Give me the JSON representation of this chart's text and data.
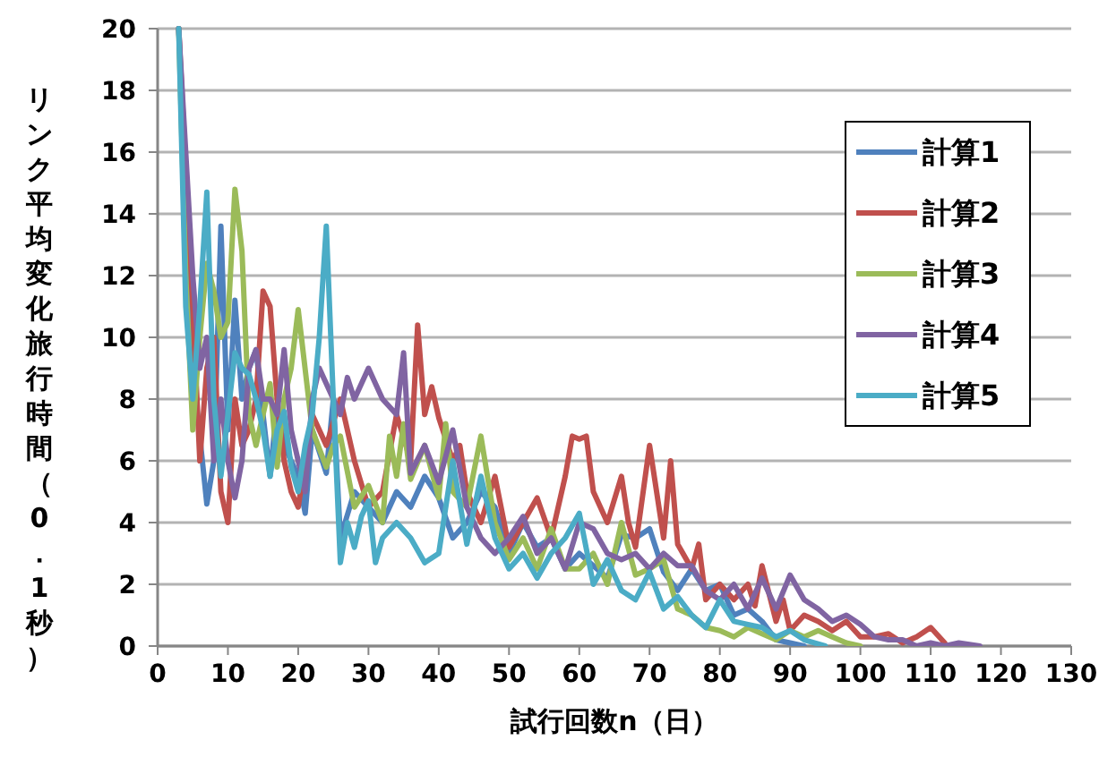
{
  "chart_data": {
    "type": "line",
    "xlabel": "試行回数n（日）",
    "ylabel": "リンク平均変化旅行時間（0．1秒）",
    "xlim": [
      0,
      130
    ],
    "xticks": [
      0,
      10,
      20,
      30,
      40,
      50,
      60,
      70,
      80,
      90,
      100,
      110,
      120,
      130
    ],
    "ylim": [
      0,
      20
    ],
    "yticks": [
      0,
      2,
      4,
      6,
      8,
      10,
      12,
      14,
      16,
      18,
      20
    ],
    "grid": "y",
    "legend": "top right",
    "marker": "none",
    "line_style": "solid",
    "series": [
      {
        "name": "計算1",
        "color": "#4f81bd",
        "x": [
          3,
          5,
          7,
          8,
          9,
          10,
          11,
          12,
          13,
          14,
          15,
          16,
          17,
          18,
          20,
          21,
          22,
          24,
          25,
          26,
          28,
          30,
          32,
          34,
          36,
          38,
          40,
          42,
          44,
          46,
          48,
          50,
          52,
          54,
          56,
          58,
          60,
          62,
          64,
          66,
          68,
          70,
          72,
          74,
          76,
          78,
          80,
          82,
          84,
          86,
          88,
          90,
          92
        ],
        "values": [
          20,
          9,
          4.6,
          6,
          13.6,
          7,
          11.2,
          8,
          9,
          9.6,
          7.5,
          5.5,
          7.8,
          6.5,
          5.5,
          4.3,
          7,
          5.6,
          8,
          3.5,
          5,
          4.5,
          4,
          5,
          4.5,
          5.5,
          4.8,
          3.5,
          4,
          5,
          4.5,
          3,
          4,
          3.2,
          3.5,
          2.5,
          3,
          2.6,
          2.2,
          3.6,
          3.5,
          3.8,
          2.4,
          1.8,
          2.5,
          1.8,
          2,
          1,
          1.2,
          0.8,
          0.2,
          0.1,
          0
        ]
      },
      {
        "name": "計算2",
        "color": "#c0504d",
        "x": [
          3,
          5,
          6,
          7,
          8,
          9,
          10,
          11,
          12,
          13,
          14,
          15,
          16,
          17,
          18,
          19,
          20,
          22,
          24,
          26,
          28,
          30,
          32,
          34,
          36,
          37,
          38,
          39,
          40,
          42,
          43,
          44,
          46,
          48,
          50,
          52,
          54,
          56,
          58,
          59,
          60,
          61,
          62,
          64,
          66,
          67,
          68,
          70,
          72,
          73,
          74,
          76,
          77,
          78,
          80,
          82,
          84,
          85,
          86,
          88,
          89,
          90,
          92,
          94,
          96,
          98,
          100,
          102,
          104,
          106,
          108,
          110,
          112
        ],
        "values": [
          20,
          11,
          6,
          9,
          10,
          5,
          4,
          8,
          6.5,
          7,
          8,
          11.5,
          11,
          8,
          6,
          5,
          4.5,
          7.5,
          6.5,
          8,
          6,
          4.5,
          5,
          7.5,
          6,
          10.4,
          7.5,
          8.4,
          7.4,
          6,
          6.5,
          5,
          4,
          5.5,
          3.2,
          4,
          4.8,
          3.5,
          5.5,
          6.8,
          6.7,
          6.8,
          5,
          4,
          5.5,
          4,
          3.2,
          6.5,
          3.5,
          6,
          3.3,
          2.5,
          3.3,
          1.5,
          2,
          1.5,
          2,
          1.3,
          2.6,
          0.8,
          1.5,
          0.5,
          1,
          0.8,
          0.5,
          0.8,
          0.3,
          0.3,
          0.4,
          0.1,
          0.3,
          0.6,
          0.1
        ]
      },
      {
        "name": "計算3",
        "color": "#9bbb59",
        "x": [
          3,
          4,
          5,
          6,
          7,
          8,
          9,
          10,
          11,
          12,
          13,
          14,
          16,
          17,
          18,
          19,
          20,
          22,
          24,
          25,
          26,
          28,
          30,
          32,
          33,
          34,
          35,
          36,
          38,
          40,
          41,
          42,
          44,
          46,
          48,
          50,
          52,
          54,
          56,
          58,
          60,
          62,
          64,
          66,
          68,
          70,
          72,
          74,
          76,
          78,
          80,
          82,
          84,
          86,
          88,
          90,
          92,
          94,
          96,
          98,
          100
        ],
        "values": [
          20,
          12,
          7,
          10,
          12.4,
          11.5,
          10,
          10.5,
          14.8,
          12.8,
          7.5,
          6.5,
          8.5,
          5.8,
          8,
          9,
          10.9,
          7,
          5.8,
          6.5,
          6.8,
          4.5,
          5.2,
          4,
          6.8,
          5.5,
          7.2,
          5.4,
          6.5,
          4.8,
          7.2,
          5,
          4.5,
          6.8,
          4,
          2.8,
          3.5,
          2.5,
          3.8,
          2.5,
          2.5,
          3,
          2,
          4,
          2.3,
          2.5,
          2.8,
          1.2,
          1,
          0.6,
          0.5,
          0.3,
          0.6,
          0.4,
          0.2,
          0.5,
          0.3,
          0.5,
          0.3,
          0.1,
          0
        ]
      },
      {
        "name": "計算4",
        "color": "#8064a2",
        "x": [
          3,
          5,
          6,
          7,
          8,
          9,
          10,
          11,
          12,
          13,
          14,
          15,
          16,
          17,
          18,
          19,
          20,
          21,
          22,
          23,
          24,
          26,
          27,
          28,
          30,
          32,
          34,
          35,
          36,
          38,
          40,
          42,
          44,
          46,
          48,
          50,
          52,
          54,
          56,
          58,
          60,
          62,
          64,
          66,
          68,
          70,
          72,
          74,
          76,
          78,
          80,
          82,
          84,
          86,
          88,
          90,
          92,
          94,
          96,
          98,
          100,
          102,
          104,
          106,
          108,
          110,
          112,
          114,
          117
        ],
        "values": [
          20,
          12,
          9,
          10,
          6,
          8,
          6,
          4.8,
          6,
          9,
          9.6,
          8,
          8,
          7.5,
          9.6,
          7,
          6,
          5,
          8,
          9,
          8.5,
          7.5,
          8.7,
          8,
          9,
          8,
          7.5,
          9.5,
          5.6,
          6.5,
          5.3,
          7,
          4.5,
          3.5,
          3,
          3.5,
          4.2,
          3,
          3.5,
          2.5,
          4,
          3.8,
          3,
          2.8,
          3,
          2.5,
          3,
          2.6,
          2.6,
          1.8,
          1.5,
          2,
          1.2,
          2.2,
          1.2,
          2.3,
          1.5,
          1.2,
          0.8,
          1,
          0.7,
          0.3,
          0.2,
          0.2,
          0,
          0.1,
          0,
          0.1,
          0
        ]
      },
      {
        "name": "計算5",
        "color": "#4bacc6",
        "x": [
          3,
          4,
          5,
          6,
          7,
          8,
          9,
          10,
          11,
          12,
          13,
          14,
          15,
          16,
          17,
          18,
          19,
          20,
          21,
          22,
          23,
          24,
          25,
          26,
          27,
          28,
          29,
          30,
          31,
          32,
          34,
          36,
          38,
          40,
          42,
          44,
          46,
          48,
          50,
          52,
          54,
          56,
          58,
          60,
          62,
          64,
          66,
          68,
          70,
          72,
          74,
          76,
          78,
          80,
          82,
          84,
          86,
          88,
          90,
          92,
          95
        ],
        "values": [
          20,
          11,
          8,
          11,
          14.7,
          8,
          5.5,
          7.5,
          9.5,
          9,
          8.8,
          8,
          7,
          5.5,
          7,
          7.6,
          5.8,
          5,
          6.5,
          7.5,
          10,
          13.6,
          8,
          2.7,
          4,
          3.2,
          4.2,
          4.7,
          2.7,
          3.5,
          4,
          3.5,
          2.7,
          3,
          6,
          3.3,
          5.5,
          3.5,
          2.5,
          3,
          2.2,
          3,
          3.5,
          4.3,
          2,
          2.8,
          1.8,
          1.5,
          2.4,
          1.2,
          1.6,
          1,
          0.6,
          1.5,
          0.8,
          0.7,
          0.6,
          0.3,
          0.5,
          0.2,
          0
        ]
      }
    ]
  }
}
